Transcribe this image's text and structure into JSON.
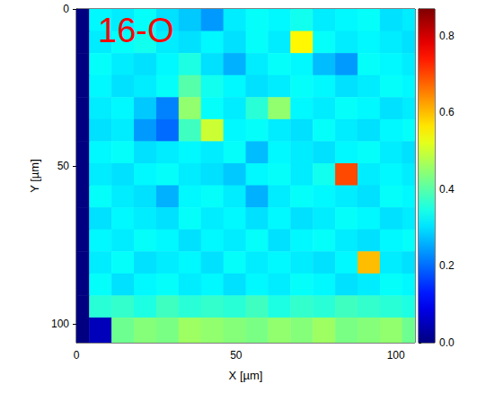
{
  "chart_data": {
    "type": "heatmap",
    "title": "16-O",
    "xlabel": "X [µm]",
    "ylabel": "Y [µm]",
    "xlim": [
      0,
      106
    ],
    "xticks": [
      0,
      50,
      100
    ],
    "ylim": [
      106,
      0
    ],
    "yticks": [
      0,
      50,
      100
    ],
    "color": "jet",
    "x_edges": [
      0,
      4,
      11,
      18,
      25,
      32,
      39,
      46,
      53,
      60,
      67,
      74,
      81,
      88,
      95,
      102,
      106
    ],
    "y_edges": [
      0,
      7,
      14,
      21,
      28,
      35,
      42,
      49,
      56,
      63,
      70,
      77,
      84,
      91,
      98,
      106
    ],
    "z": [
      [
        0,
        0.32,
        0.31,
        0.33,
        0.3,
        0.28,
        0.24,
        0.31,
        0.33,
        0.32,
        0.34,
        0.31,
        0.32,
        0.33,
        0.3,
        0.31
      ],
      [
        0,
        0.31,
        0.33,
        0.34,
        0.31,
        0.3,
        0.32,
        0.3,
        0.33,
        0.31,
        0.55,
        0.33,
        0.31,
        0.32,
        0.31,
        0.3
      ],
      [
        0,
        0.33,
        0.31,
        0.3,
        0.32,
        0.35,
        0.3,
        0.26,
        0.31,
        0.33,
        0.32,
        0.27,
        0.24,
        0.33,
        0.32,
        0.31
      ],
      [
        0,
        0.32,
        0.3,
        0.31,
        0.33,
        0.4,
        0.34,
        0.32,
        0.3,
        0.31,
        0.33,
        0.32,
        0.3,
        0.31,
        0.33,
        0.32
      ],
      [
        0,
        0.31,
        0.32,
        0.28,
        0.22,
        0.45,
        0.33,
        0.31,
        0.36,
        0.45,
        0.32,
        0.31,
        0.33,
        0.32,
        0.3,
        0.31
      ],
      [
        0,
        0.3,
        0.31,
        0.24,
        0.2,
        0.38,
        0.5,
        0.32,
        0.33,
        0.31,
        0.3,
        0.33,
        0.31,
        0.3,
        0.32,
        0.33
      ],
      [
        0,
        0.32,
        0.33,
        0.3,
        0.31,
        0.32,
        0.31,
        0.33,
        0.27,
        0.32,
        0.31,
        0.3,
        0.32,
        0.33,
        0.31,
        0.3
      ],
      [
        0,
        0.31,
        0.3,
        0.32,
        0.33,
        0.31,
        0.3,
        0.28,
        0.32,
        0.33,
        0.31,
        0.34,
        0.7,
        0.31,
        0.32,
        0.31
      ],
      [
        0,
        0.33,
        0.31,
        0.3,
        0.26,
        0.32,
        0.33,
        0.31,
        0.26,
        0.31,
        0.33,
        0.32,
        0.31,
        0.3,
        0.33,
        0.32
      ],
      [
        0,
        0.3,
        0.32,
        0.31,
        0.3,
        0.33,
        0.31,
        0.32,
        0.3,
        0.32,
        0.3,
        0.31,
        0.33,
        0.32,
        0.3,
        0.31
      ],
      [
        0,
        0.32,
        0.31,
        0.33,
        0.32,
        0.3,
        0.32,
        0.31,
        0.33,
        0.3,
        0.32,
        0.33,
        0.31,
        0.3,
        0.32,
        0.33
      ],
      [
        0,
        0.31,
        0.33,
        0.3,
        0.31,
        0.32,
        0.3,
        0.33,
        0.31,
        0.32,
        0.31,
        0.3,
        0.32,
        0.6,
        0.31,
        0.3
      ],
      [
        0,
        0.33,
        0.3,
        0.32,
        0.33,
        0.31,
        0.32,
        0.3,
        0.32,
        0.31,
        0.33,
        0.32,
        0.3,
        0.31,
        0.33,
        0.32
      ],
      [
        0,
        0.36,
        0.37,
        0.35,
        0.38,
        0.36,
        0.37,
        0.36,
        0.38,
        0.35,
        0.37,
        0.36,
        0.38,
        0.37,
        0.36,
        0.35
      ],
      [
        0,
        0.05,
        0.42,
        0.44,
        0.43,
        0.46,
        0.45,
        0.44,
        0.43,
        0.45,
        0.44,
        0.46,
        0.43,
        0.44,
        0.45,
        0.42
      ]
    ],
    "colorbar": {
      "range": [
        0,
        0.87
      ],
      "ticks": [
        {
          "value": 0,
          "label": "0.0"
        },
        {
          "value": 0.2,
          "label": "0.2"
        },
        {
          "value": 0.4,
          "label": "0.4"
        },
        {
          "value": 0.6,
          "label": "0.6"
        },
        {
          "value": 0.8,
          "label": "0.8"
        }
      ]
    }
  }
}
